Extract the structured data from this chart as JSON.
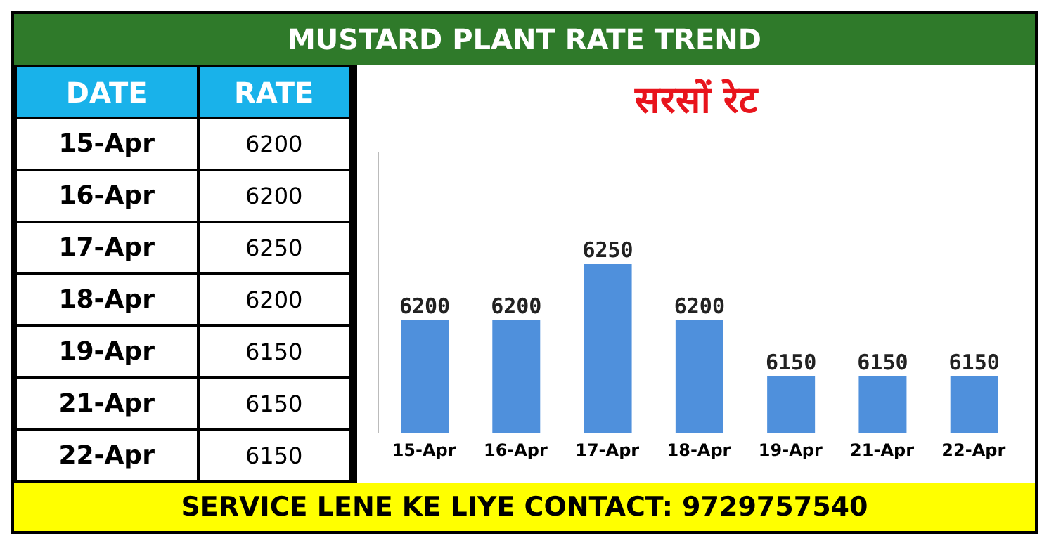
{
  "chart_data": {
    "type": "bar",
    "title": "MUSTARD PLANT RATE TREND",
    "subtitle": "सरसों रेट",
    "categories": [
      "15-Apr",
      "16-Apr",
      "17-Apr",
      "18-Apr",
      "19-Apr",
      "21-Apr",
      "22-Apr"
    ],
    "values": [
      6200,
      6200,
      6250,
      6200,
      6150,
      6150,
      6150
    ],
    "value_labels": [
      "6200",
      "6200",
      "6250",
      "6200",
      "6150",
      "6150",
      "6150"
    ],
    "color": "#4f90dc",
    "ylim": [
      6100,
      6350
    ],
    "annotations": [
      "DATE",
      "RATE",
      "SERVICE LENE KE LIYE CONTACT: 9729757540"
    ]
  }
}
